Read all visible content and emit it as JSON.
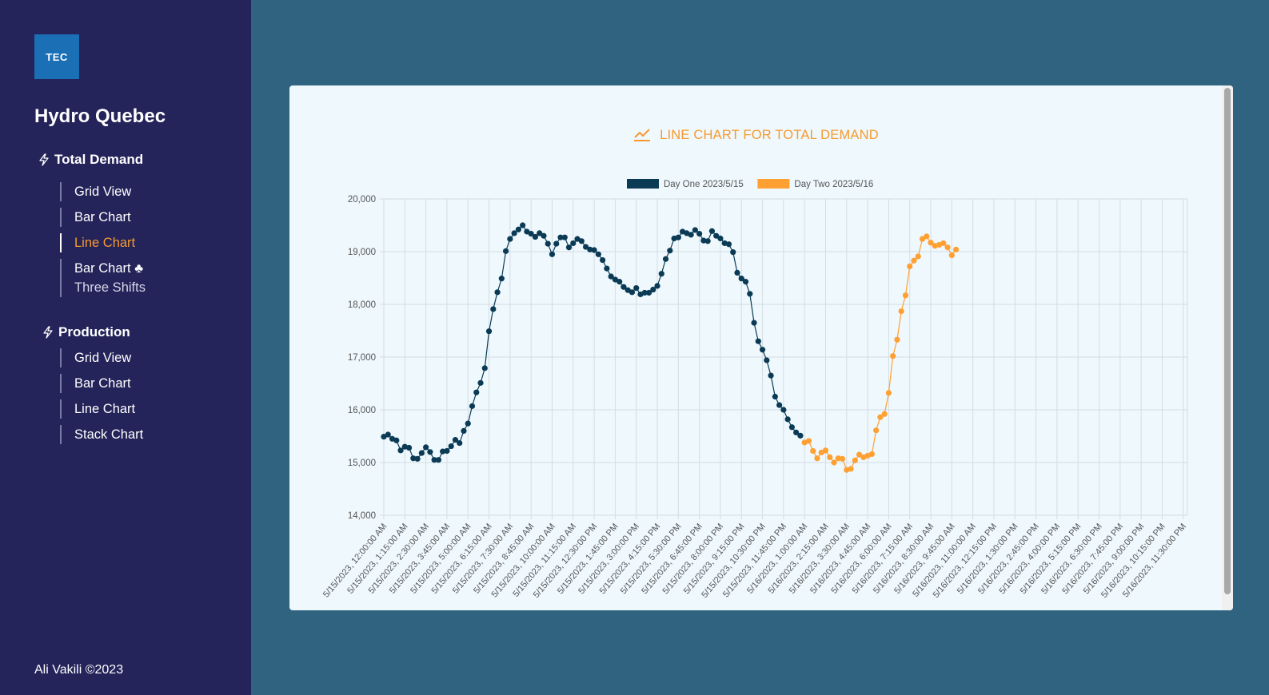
{
  "sidebar": {
    "logo": "TEC",
    "brand": "Hydro Quebec",
    "sections": [
      {
        "label": "Total Demand",
        "icon": "bolt-icon",
        "items": [
          "Grid View",
          "Bar Chart",
          "Line Chart",
          "Bar Chart ♣",
          "Three Shifts"
        ]
      },
      {
        "label": "Production",
        "icon": "bolt-icon",
        "items": [
          "Grid View",
          "Bar Chart",
          "Line Chart",
          "Stack Chart"
        ]
      }
    ],
    "footer": "Ali Vakili ©2023"
  },
  "colors": {
    "sidebar": "#24235a",
    "background": "#2f6380",
    "accent": "#f79a2e",
    "series1": "#0b3a55",
    "series2": "#ffa033"
  },
  "chart_title": "LINE CHART FOR TOTAL DEMAND",
  "chart_data": {
    "type": "line",
    "title": "LINE CHART FOR TOTAL DEMAND",
    "xlabel": "",
    "ylabel": "",
    "ylim": [
      14000,
      20000
    ],
    "yticks": [
      "14,000",
      "15,000",
      "16,000",
      "17,000",
      "18,000",
      "19,000",
      "20,000"
    ],
    "legend_position": "top",
    "grid": true,
    "x_ticks": [
      "5/15/2023, 12:00:00 AM",
      "5/15/2023, 1:15:00 AM",
      "5/15/2023, 2:30:00 AM",
      "5/15/2023, 3:45:00 AM",
      "5/15/2023, 5:00:00 AM",
      "5/15/2023, 6:15:00 AM",
      "5/15/2023, 7:30:00 AM",
      "5/15/2023, 8:45:00 AM",
      "5/15/2023, 10:00:00 AM",
      "5/15/2023, 11:15:00 AM",
      "5/15/2023, 12:30:00 PM",
      "5/15/2023, 1:45:00 PM",
      "5/15/2023, 3:00:00 PM",
      "5/15/2023, 4:15:00 PM",
      "5/15/2023, 5:30:00 PM",
      "5/15/2023, 6:45:00 PM",
      "5/15/2023, 8:00:00 PM",
      "5/15/2023, 9:15:00 PM",
      "5/15/2023, 10:30:00 PM",
      "5/15/2023, 11:45:00 PM",
      "5/16/2023, 1:00:00 AM",
      "5/16/2023, 2:15:00 AM",
      "5/16/2023, 3:30:00 AM",
      "5/16/2023, 4:45:00 AM",
      "5/16/2023, 6:00:00 AM",
      "5/16/2023, 7:15:00 AM",
      "5/16/2023, 8:30:00 AM",
      "5/16/2023, 9:45:00 AM",
      "5/16/2023, 11:00:00 AM",
      "5/16/2023, 12:15:00 PM",
      "5/16/2023, 1:30:00 PM",
      "5/16/2023, 2:45:00 PM",
      "5/16/2023, 4:00:00 PM",
      "5/16/2023, 5:15:00 PM",
      "5/16/2023, 6:30:00 PM",
      "5/16/2023, 7:45:00 PM",
      "5/16/2023, 9:00:00 PM",
      "5/16/2023, 10:15:00 PM",
      "5/16/2023, 11:30:00 PM"
    ],
    "interval_minutes": 15,
    "total_slots": 192,
    "series": [
      {
        "name": "Day One 2023/5/15",
        "color": "#0b3a55",
        "start_index": 0,
        "values": [
          15490,
          15530,
          15450,
          15420,
          15230,
          15300,
          15280,
          15080,
          15070,
          15180,
          15290,
          15200,
          15050,
          15050,
          15210,
          15220,
          15310,
          15430,
          15370,
          15600,
          15740,
          16070,
          16330,
          16510,
          16790,
          17490,
          17910,
          18230,
          18490,
          19010,
          19240,
          19350,
          19420,
          19500,
          19380,
          19340,
          19280,
          19350,
          19300,
          19150,
          18950,
          19150,
          19270,
          19270,
          19080,
          19160,
          19240,
          19200,
          19090,
          19040,
          19030,
          18950,
          18840,
          18680,
          18530,
          18470,
          18430,
          18330,
          18270,
          18230,
          18310,
          18190,
          18220,
          18220,
          18280,
          18350,
          18580,
          18860,
          19020,
          19250,
          19270,
          19380,
          19350,
          19320,
          19410,
          19340,
          19210,
          19200,
          19390,
          19300,
          19250,
          19160,
          19140,
          18990,
          18600,
          18490,
          18430,
          18200,
          17650,
          17300,
          17140,
          16940,
          16650,
          16250,
          16090,
          16000,
          15820,
          15670,
          15570,
          15510
        ]
      },
      {
        "name": "Day Two 2023/5/16",
        "color": "#ffa033",
        "start_index": 100,
        "values": [
          15380,
          15410,
          15220,
          15080,
          15190,
          15230,
          15100,
          15000,
          15080,
          15070,
          14860,
          14880,
          15040,
          15150,
          15100,
          15130,
          15160,
          15610,
          15860,
          15920,
          16320,
          17020,
          17330,
          17870,
          18170,
          18720,
          18830,
          18910,
          19240,
          19290,
          19170,
          19110,
          19130,
          19160,
          19080,
          18930,
          19040
        ]
      }
    ]
  }
}
